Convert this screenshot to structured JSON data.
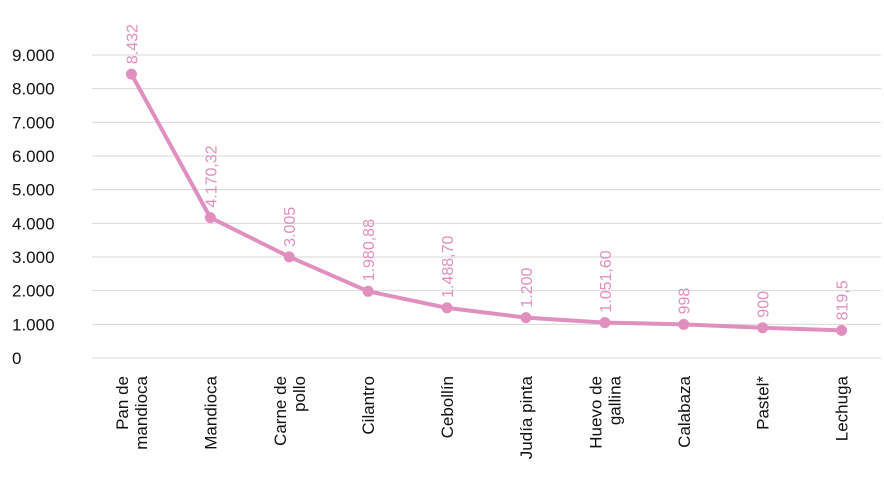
{
  "chart_data": {
    "type": "line",
    "title": "",
    "xlabel": "",
    "ylabel": "",
    "ylim": [
      0,
      9000
    ],
    "yticks": [
      0,
      1000,
      2000,
      3000,
      4000,
      5000,
      6000,
      7000,
      8000,
      9000
    ],
    "ytick_labels": [
      "0",
      "1.000",
      "2.000",
      "3.000",
      "4.000",
      "5.000",
      "6.000",
      "7.000",
      "8.000",
      "9.000"
    ],
    "grid": true,
    "legend": "none",
    "categories": [
      [
        "Pan de",
        "mandioca"
      ],
      [
        "Mandioca"
      ],
      [
        "Carne de",
        "pollo"
      ],
      [
        "Cilantro"
      ],
      [
        "Cebollín"
      ],
      [
        "Judía pinta"
      ],
      [
        "Huevo de",
        "gallina"
      ],
      [
        "Calabaza"
      ],
      [
        "Pastel*"
      ],
      [
        "Lechuga"
      ]
    ],
    "series": [
      {
        "values": [
          8432,
          4170.32,
          3005,
          1980.88,
          1488.7,
          1200,
          1051.6,
          998,
          900,
          819.5
        ],
        "labels": [
          "8.432",
          "4.170,32",
          "3.005",
          "1.980,88",
          "1.488,70",
          "1.200",
          "1.051,60",
          "998",
          "900",
          "819,5"
        ],
        "color": "#e08fbf"
      }
    ],
    "colors": {
      "line": "#e08fbf",
      "label": "#e08fbf",
      "grid": "#d9d9d9",
      "text": "#111111"
    }
  }
}
